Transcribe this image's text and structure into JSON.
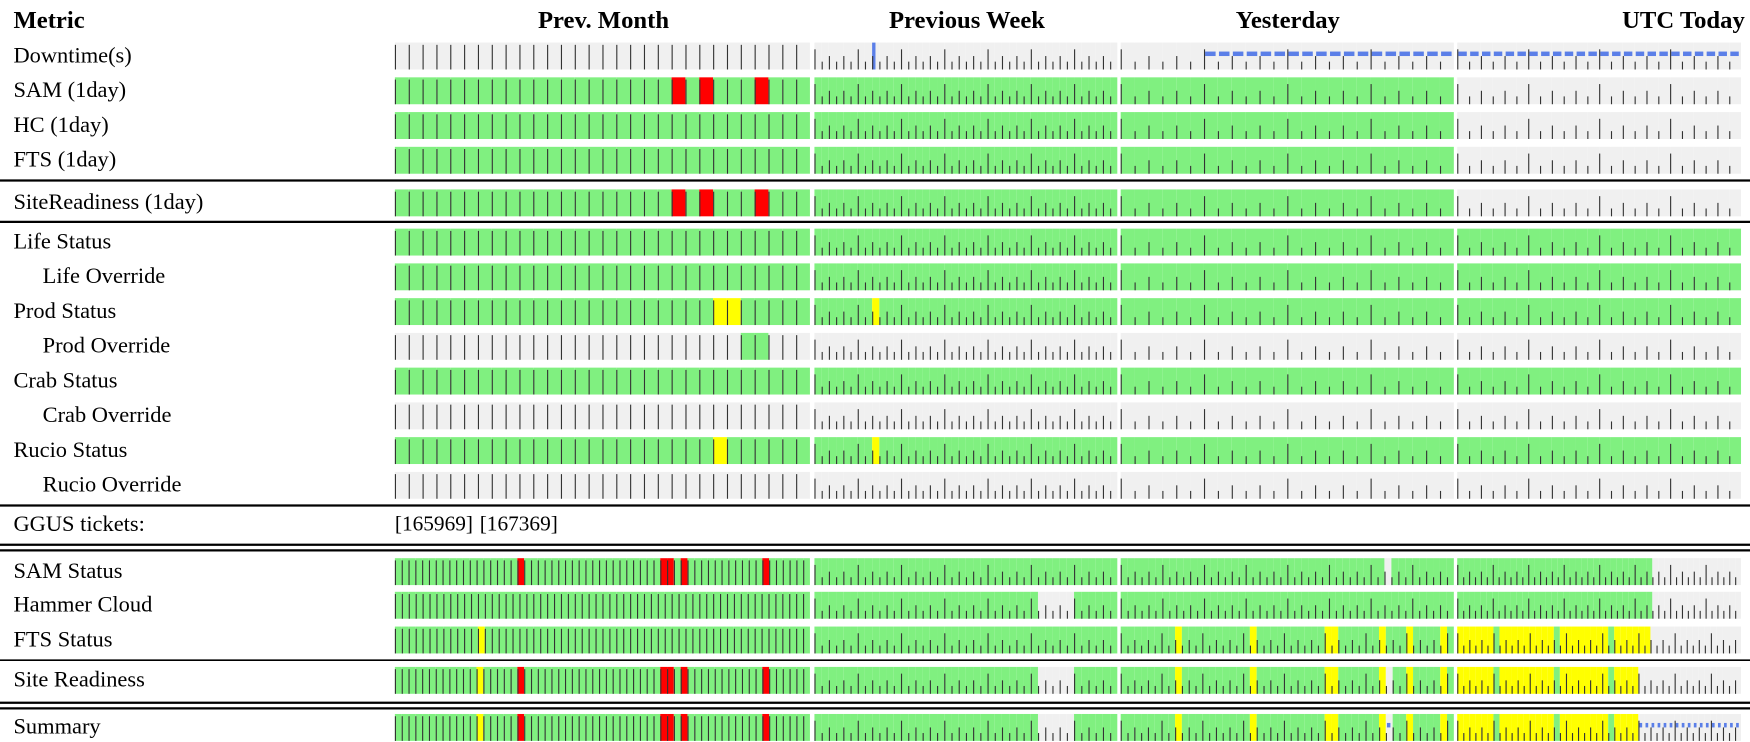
{
  "header": {
    "metric": "Metric",
    "periods": [
      "Prev. Month",
      "Previous Week",
      "Yesterday",
      "UTC Today"
    ]
  },
  "colors": {
    "g": "#80f080",
    "r": "#ff0000",
    "y": "#ffff00",
    "w": "#f0f0f0",
    "d": "#5b7fe8",
    "B": "#5b7fe8"
  },
  "rows": [
    {
      "label": "Downtime(s)",
      "cells": [
        "wwwwwwwwwwwwwwwwwwwwwwwwwwwwww",
        "wwwwwwwwBwwwwwwwwwwwwwwwwwwwwwwwwwwwwwwwww",
        "wwwwwwdddddddddddddddddd",
        "dddddddddddddddddddddddd"
      ]
    },
    {
      "label": "SAM (1day)",
      "cells": [
        "ggggggggggggggggggggrgrgggrggg",
        "gggggggggggggggggggggggggggggggggggggggggg",
        "gggggggggggggggggggggggg",
        "wwwwwwwwwwwwwwwwwwwwwwww"
      ]
    },
    {
      "label": "HC (1day)",
      "cells": [
        "gggggggggggggggggggggggggggggg",
        "gggggggggggggggggggggggggggggggggggggggggg",
        "gggggggggggggggggggggggg",
        "wwwwwwwwwwwwwwwwwwwwwwww"
      ]
    },
    {
      "label": "FTS (1day)",
      "cells": [
        "gggggggggggggggggggggggggggggg",
        "gggggggggggggggggggggggggggggggggggggggggg",
        "gggggggggggggggggggggggg",
        "wwwwwwwwwwwwwwwwwwwwwwww"
      ]
    },
    {
      "label": "SiteReadiness (1day)",
      "cells": [
        "ggggggggggggggggggggrgrgggrggg",
        "gggggggggggggggggggggggggggggggggggggggggg",
        "gggggggggggggggggggggggg",
        "wwwwwwwwwwwwwwwwwwwwwwww"
      ]
    },
    {
      "label": "Life Status",
      "cells": [
        "gggggggggggggggggggggggggggggg",
        "gggggggggggggggggggggggggggggggggggggggggg",
        "gggggggggggggggggggggggg",
        "gggggggggggggggggggggggg"
      ]
    },
    {
      "label": "Life Override",
      "indent": true,
      "cells": [
        "gggggggggggggggggggggggggggggg",
        "gggggggggggggggggggggggggggggggggggggggggg",
        "gggggggggggggggggggggggg",
        "gggggggggggggggggggggggg"
      ]
    },
    {
      "label": "Prod Status",
      "cells": [
        "gggggggggggggggggggggggyyggggg",
        "ggggggggyggggggggggggggggggggggggggggggggg",
        "gggggggggggggggggggggggg",
        "gggggggggggggggggggggggg"
      ]
    },
    {
      "label": "Prod Override",
      "indent": true,
      "cells": [
        "wwwwwwwwwwwwwwwwwwwwwwwwwggwww",
        "wwwwwwwwwwwwwwwwwwwwwwwwwwwwwwwwwwwwwwwwww",
        "wwwwwwwwwwwwwwwwwwwwwwww",
        "wwwwwwwwwwwwwwwwwwwwwwww"
      ]
    },
    {
      "label": "Crab Status",
      "cells": [
        "gggggggggggggggggggggggggggggg",
        "gggggggggggggggggggggggggggggggggggggggggg",
        "gggggggggggggggggggggggg",
        "gggggggggggggggggggggggg"
      ]
    },
    {
      "label": "Crab Override",
      "indent": true,
      "cells": [
        "wwwwwwwwwwwwwwwwwwwwwwwwwwwwww",
        "wwwwwwwwwwwwwwwwwwwwwwwwwwwwwwwwwwwwwwwwww",
        "wwwwwwwwwwwwwwwwwwwwwwww",
        "wwwwwwwwwwwwwwwwwwwwwwww"
      ]
    },
    {
      "label": "Rucio Status",
      "cells": [
        "gggggggggggggggggggggggygggggg",
        "ggggggggyggggggggggggggggggggggggggggggggg",
        "gggggggggggggggggggggggg",
        "gggggggggggggggggggggggg"
      ]
    },
    {
      "label": "Rucio Override",
      "indent": true,
      "cells": [
        "wwwwwwwwwwwwwwwwwwwwwwwwwwwwww",
        "wwwwwwwwwwwwwwwwwwwwwwwwwwwwwwwwwwwwwwwwww",
        "wwwwwwwwwwwwwwwwwwwwwwww",
        "wwwwwwwwwwwwwwwwwwwwwwww"
      ]
    },
    {
      "label": "SAM Status",
      "cells": [
        "ggggggggggggggggggrggggggggggggggggggggrrgrgggggggggggrgggggg",
        "gggggggggggggggggggggggggggggggggggggggggg",
        "ggggggggggggggggggggggggggggggggggggggwggggggggg",
        "gggggggggggggggggggggggggggggggggwwwwwwwwwwwwwww"
      ]
    },
    {
      "label": "Hammer Cloud",
      "cells": [
        "gggggggggggggggggggggggggggggggggggggggggggggggggggggggggggg",
        "gggggggggggggggggggggggggggggggwwwwwgggggg",
        "gggggggggggggggggggggggggggggggggggggggggggggggg",
        "gggggggggggggggggggggggggggggggggwwwwwwwwwwwwwww"
      ]
    },
    {
      "label": "FTS Status",
      "cells": [
        "ggggggggggggyggggggggggggggggggggggggggggggggggggggggggggggg",
        "gggggggggggggggggggggggggggggggggggggggggg",
        "ggggggggyggggggggggyggggggggggyyggggggygggyggggyg",
        "yyyyyygyyyyyyyyygyyyyyyyygyyyyyywwwwwwwwwwwwwww"
      ]
    },
    {
      "label": "Site Readiness",
      "cells": [
        "ggggggggggggygggggrggggggggggggggggggggrrgrgggggggggggrgggggg",
        "gggggggggggggggggggggggggggggggwwwwwgggggg",
        "ggggggggyggggggggggyggggggggggyyggggggywggyggggyg",
        "yyyyyygyyyyyyyyygyyyyyyyygyyyywwwwwwwwwwwwwwwww"
      ]
    },
    {
      "label": "Summary",
      "cells": [
        "ggggggggggggygggggrggggggggggggggggggggrrgrgggggggggggrgggggg",
        "gggggggggggggggggggggggggggggggwwwwwgggggg",
        "ggggggggyggggggggggyggggggggggyyggggggydggyggggyg",
        "yyyyyygyyyyyyyyygyyyyyyyygyyyyddddddddddddddddd"
      ]
    }
  ],
  "ggus": {
    "label": "GGUS tickets:",
    "tickets": [
      "[165969]",
      "[167369]"
    ]
  }
}
